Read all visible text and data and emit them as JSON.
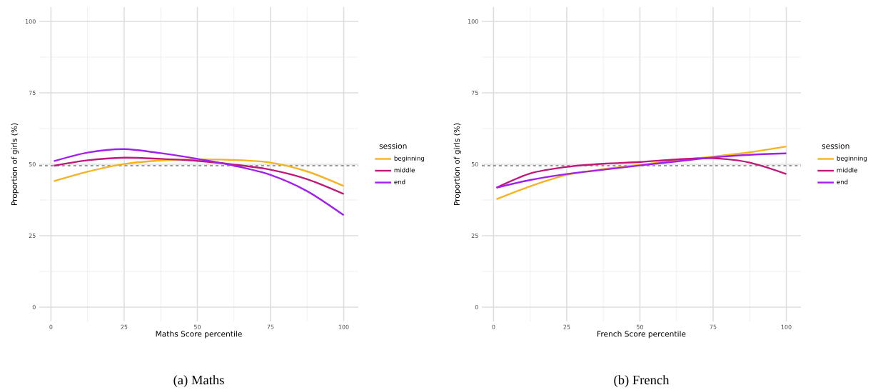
{
  "chart_data": [
    {
      "type": "line",
      "xlabel": "Maths Score percentile",
      "ylabel": "Proportion of girls (%)",
      "legend_title": "session",
      "annotations": [
        "(a) Maths"
      ],
      "xlim": [
        -4,
        105
      ],
      "ylim": [
        -5,
        105
      ],
      "xticks": [
        0,
        25,
        50,
        75,
        100
      ],
      "yticks": [
        0,
        25,
        50,
        75,
        100
      ],
      "grid": true,
      "legend": "right",
      "ref_lines": [
        {
          "axis": "y",
          "value": 49.5,
          "color": "#000000",
          "line_style": "dashed"
        }
      ],
      "x": [
        1,
        12.5,
        25,
        37.5,
        50,
        62.5,
        75,
        87.5,
        100
      ],
      "series": [
        {
          "name": "beginning",
          "color": "#f5b324",
          "values": [
            44.1,
            47.4,
            50.1,
            51.3,
            51.7,
            51.5,
            50.6,
            47.5,
            42.4
          ]
        },
        {
          "name": "middle",
          "color": "#c0187a",
          "values": [
            49.5,
            51.4,
            52.3,
            51.9,
            51.2,
            49.9,
            48.1,
            44.8,
            39.6
          ]
        },
        {
          "name": "end",
          "color": "#a020f0",
          "values": [
            51.1,
            54.1,
            55.3,
            53.9,
            51.9,
            49.5,
            46.3,
            40.6,
            32.2
          ]
        }
      ]
    },
    {
      "type": "line",
      "xlabel": "French Score percentile",
      "ylabel": "Proportion of girls (%)",
      "legend_title": "session",
      "annotations": [
        "(b) French"
      ],
      "xlim": [
        -4,
        105
      ],
      "ylim": [
        -5,
        105
      ],
      "xticks": [
        0,
        25,
        50,
        75,
        100
      ],
      "yticks": [
        0,
        25,
        50,
        75,
        100
      ],
      "grid": true,
      "legend": "right",
      "ref_lines": [
        {
          "axis": "y",
          "value": 49.5,
          "color": "#000000",
          "line_style": "dashed"
        }
      ],
      "x": [
        1,
        12.5,
        25,
        37.5,
        50,
        62.5,
        75,
        87.5,
        100
      ],
      "series": [
        {
          "name": "beginning",
          "color": "#f5b324",
          "values": [
            37.8,
            42.3,
            46.3,
            48.3,
            49.8,
            51.3,
            52.7,
            54.2,
            56.2
          ]
        },
        {
          "name": "middle",
          "color": "#c0187a",
          "values": [
            41.8,
            46.8,
            49.1,
            50.2,
            50.8,
            51.7,
            52.1,
            50.6,
            46.6
          ]
        },
        {
          "name": "end",
          "color": "#a020f0",
          "values": [
            41.8,
            44.5,
            46.6,
            48.1,
            49.6,
            51.0,
            52.4,
            53.3,
            53.8
          ]
        }
      ]
    }
  ]
}
